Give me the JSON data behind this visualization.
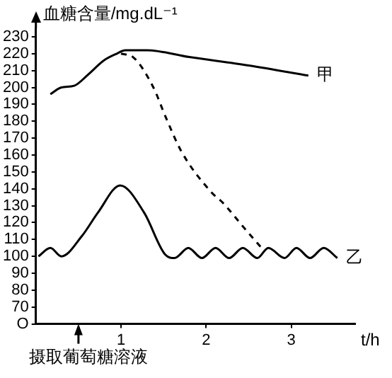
{
  "chart_data": {
    "type": "line",
    "ylabel": "血糖含量/mg.dL⁻¹",
    "xlabel": "t/h",
    "xlim": [
      0,
      3.75
    ],
    "xticks": [
      1,
      2,
      3
    ],
    "ylim": [
      60,
      235
    ],
    "yticks": [
      {
        "value": 60,
        "label": "O"
      },
      70,
      80,
      90,
      100,
      110,
      120,
      130,
      140,
      150,
      160,
      170,
      180,
      190,
      200,
      210,
      220,
      230
    ],
    "grid": false,
    "legend": false,
    "marker": "none",
    "series": [
      {
        "name": "甲",
        "color": "#000000",
        "x": [
          0.17,
          0.3,
          0.45,
          0.6,
          0.8,
          0.95,
          1.05,
          1.3,
          1.8,
          2.5,
          3.2
        ],
        "values": [
          196,
          200,
          201,
          207,
          216,
          220,
          222,
          222,
          218,
          213,
          207
        ]
      },
      {
        "color": "#000000",
        "line_style": "dashed",
        "x": [
          1.0,
          1.14,
          1.38,
          1.52,
          1.71,
          2.06,
          2.19,
          2.46,
          2.65
        ],
        "values": [
          220,
          218,
          200,
          183,
          162,
          138,
          132,
          116,
          105
        ]
      },
      {
        "name": "乙",
        "color": "#000000",
        "x": [
          0.03,
          0.17,
          0.3,
          0.54,
          0.73,
          0.99,
          1.27,
          1.52,
          1.63,
          1.79,
          1.95,
          2.11,
          2.27,
          2.43,
          2.6,
          2.73,
          2.92,
          3.06,
          3.22,
          3.38,
          3.54
        ],
        "values": [
          100,
          105,
          100,
          112,
          126,
          142,
          126,
          101,
          99,
          105,
          99,
          105,
          99,
          105,
          99,
          105,
          99,
          105,
          99,
          105,
          99
        ]
      }
    ],
    "annotations": [
      {
        "text": "摄取葡萄糖溶液",
        "x": 0.5
      }
    ]
  }
}
